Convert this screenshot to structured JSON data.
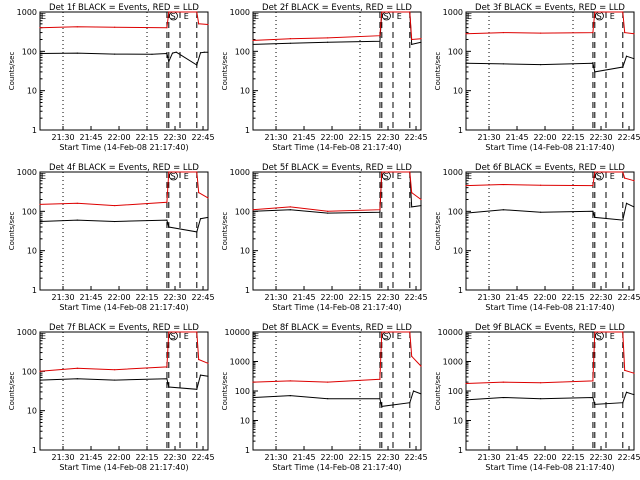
{
  "figure": {
    "x_tick_labels": [
      "21:30",
      "21:45",
      "22:00",
      "22:15",
      "22:30",
      "22:45"
    ],
    "y_tick_labels": [
      "1",
      "10",
      "100",
      "1000"
    ],
    "xlabel": "Start Time (14-Feb-08 21:17:40)",
    "ylabel": "Counts/sec",
    "colors": {
      "events": "#000000",
      "lld": "#dd0000",
      "axes": "#000000"
    }
  },
  "chart_data": [
    {
      "type": "line",
      "title": "Det 1f BLACK = Events, RED = LLD",
      "markers": {
        "E_left": "E",
        "S": "S",
        "E": "E"
      },
      "x_unit": "minutes after 21:17:40",
      "ylim": [
        1,
        1000
      ],
      "y_scale": "log",
      "series": [
        {
          "name": "BLACK = Events",
          "values": [
            {
              "x": 0,
              "y": 88
            },
            {
              "x": 20,
              "y": 90
            },
            {
              "x": 40,
              "y": 85
            },
            {
              "x": 60,
              "y": 84
            },
            {
              "x": 68,
              "y": 88
            },
            {
              "x": 69,
              "y": 55
            },
            {
              "x": 71,
              "y": 90
            },
            {
              "x": 73,
              "y": 95
            },
            {
              "x": 84,
              "y": 45
            },
            {
              "x": 86,
              "y": 92
            },
            {
              "x": 88,
              "y": 95
            },
            {
              "x": 90,
              "y": 95
            }
          ]
        },
        {
          "name": "RED = LLD",
          "values": [
            {
              "x": 0,
              "y": 400
            },
            {
              "x": 20,
              "y": 420
            },
            {
              "x": 40,
              "y": 410
            },
            {
              "x": 68,
              "y": 400
            },
            {
              "x": 69,
              "y": 1000
            },
            {
              "x": 84,
              "y": 1000
            },
            {
              "x": 85,
              "y": 500
            },
            {
              "x": 90,
              "y": 480
            }
          ]
        }
      ]
    },
    {
      "type": "line",
      "title": "Det 2f BLACK = Events, RED = LLD",
      "markers": {
        "E_left": "E",
        "S": "S",
        "E": "E"
      },
      "x_unit": "minutes after 21:17:40",
      "ylim": [
        1,
        1000
      ],
      "y_scale": "log",
      "series": [
        {
          "name": "BLACK = Events",
          "values": [
            {
              "x": 0,
              "y": 150
            },
            {
              "x": 20,
              "y": 160
            },
            {
              "x": 40,
              "y": 170
            },
            {
              "x": 68,
              "y": 180
            },
            {
              "x": 69,
              "y": 1000
            },
            {
              "x": 84,
              "y": 1000
            },
            {
              "x": 85,
              "y": 150
            },
            {
              "x": 90,
              "y": 170
            }
          ]
        },
        {
          "name": "RED = LLD",
          "values": [
            {
              "x": 0,
              "y": 190
            },
            {
              "x": 20,
              "y": 210
            },
            {
              "x": 40,
              "y": 220
            },
            {
              "x": 68,
              "y": 250
            },
            {
              "x": 69,
              "y": 1000
            },
            {
              "x": 84,
              "y": 1000
            },
            {
              "x": 85,
              "y": 200
            },
            {
              "x": 90,
              "y": 210
            }
          ]
        }
      ]
    },
    {
      "type": "line",
      "title": "Det 3f BLACK = Events, RED = LLD",
      "markers": {
        "E_left": "E",
        "S": "S",
        "E": "E"
      },
      "x_unit": "minutes after 21:17:40",
      "ylim": [
        1,
        1000
      ],
      "y_scale": "log",
      "series": [
        {
          "name": "BLACK = Events",
          "values": [
            {
              "x": 0,
              "y": 50
            },
            {
              "x": 20,
              "y": 48
            },
            {
              "x": 40,
              "y": 46
            },
            {
              "x": 68,
              "y": 50
            },
            {
              "x": 69,
              "y": 30
            },
            {
              "x": 84,
              "y": 40
            },
            {
              "x": 86,
              "y": 75
            },
            {
              "x": 90,
              "y": 65
            }
          ]
        },
        {
          "name": "RED = LLD",
          "values": [
            {
              "x": 0,
              "y": 280
            },
            {
              "x": 20,
              "y": 300
            },
            {
              "x": 40,
              "y": 290
            },
            {
              "x": 68,
              "y": 300
            },
            {
              "x": 69,
              "y": 1000
            },
            {
              "x": 84,
              "y": 1000
            },
            {
              "x": 85,
              "y": 300
            },
            {
              "x": 90,
              "y": 280
            }
          ]
        }
      ]
    },
    {
      "type": "line",
      "title": "Det 4f BLACK = Events, RED = LLD",
      "markers": {
        "E_left": "E",
        "S": "S",
        "E": "E"
      },
      "x_unit": "minutes after 21:17:40",
      "ylim": [
        1,
        1000
      ],
      "y_scale": "log",
      "series": [
        {
          "name": "BLACK = Events",
          "values": [
            {
              "x": 0,
              "y": 55
            },
            {
              "x": 20,
              "y": 60
            },
            {
              "x": 40,
              "y": 55
            },
            {
              "x": 68,
              "y": 60
            },
            {
              "x": 69,
              "y": 40
            },
            {
              "x": 84,
              "y": 30
            },
            {
              "x": 86,
              "y": 65
            },
            {
              "x": 90,
              "y": 70
            }
          ]
        },
        {
          "name": "RED = LLD",
          "values": [
            {
              "x": 0,
              "y": 150
            },
            {
              "x": 20,
              "y": 160
            },
            {
              "x": 40,
              "y": 140
            },
            {
              "x": 68,
              "y": 170
            },
            {
              "x": 69,
              "y": 1000
            },
            {
              "x": 84,
              "y": 1000
            },
            {
              "x": 85,
              "y": 300
            },
            {
              "x": 90,
              "y": 220
            }
          ]
        }
      ]
    },
    {
      "type": "line",
      "title": "Det 5f BLACK = Events, RED = LLD",
      "markers": {
        "E_left": "E",
        "S": "S",
        "E": "E"
      },
      "x_unit": "minutes after 21:17:40",
      "ylim": [
        1,
        1000
      ],
      "y_scale": "log",
      "series": [
        {
          "name": "BLACK = Events",
          "values": [
            {
              "x": 0,
              "y": 100
            },
            {
              "x": 20,
              "y": 110
            },
            {
              "x": 40,
              "y": 90
            },
            {
              "x": 68,
              "y": 95
            },
            {
              "x": 69,
              "y": 1000
            },
            {
              "x": 84,
              "y": 1000
            },
            {
              "x": 85,
              "y": 130
            },
            {
              "x": 90,
              "y": 140
            }
          ]
        },
        {
          "name": "RED = LLD",
          "values": [
            {
              "x": 0,
              "y": 110
            },
            {
              "x": 20,
              "y": 130
            },
            {
              "x": 40,
              "y": 100
            },
            {
              "x": 68,
              "y": 110
            },
            {
              "x": 69,
              "y": 1000
            },
            {
              "x": 84,
              "y": 1000
            },
            {
              "x": 85,
              "y": 300
            },
            {
              "x": 90,
              "y": 200
            }
          ]
        }
      ]
    },
    {
      "type": "line",
      "title": "Det 6f BLACK = Events, RED = LLD",
      "markers": {
        "E_left": "E",
        "S": "S",
        "E": "E"
      },
      "x_unit": "minutes after 21:17:40",
      "ylim": [
        1,
        1000
      ],
      "y_scale": "log",
      "series": [
        {
          "name": "BLACK = Events",
          "values": [
            {
              "x": 0,
              "y": 90
            },
            {
              "x": 20,
              "y": 110
            },
            {
              "x": 40,
              "y": 95
            },
            {
              "x": 68,
              "y": 100
            },
            {
              "x": 69,
              "y": 70
            },
            {
              "x": 84,
              "y": 60
            },
            {
              "x": 86,
              "y": 160
            },
            {
              "x": 90,
              "y": 130
            }
          ]
        },
        {
          "name": "RED = LLD",
          "values": [
            {
              "x": 0,
              "y": 450
            },
            {
              "x": 20,
              "y": 480
            },
            {
              "x": 40,
              "y": 460
            },
            {
              "x": 68,
              "y": 450
            },
            {
              "x": 69,
              "y": 1000
            },
            {
              "x": 84,
              "y": 1000
            },
            {
              "x": 85,
              "y": 700
            },
            {
              "x": 90,
              "y": 600
            }
          ]
        }
      ]
    },
    {
      "type": "line",
      "title": "Det 7f BLACK = Events, RED = LLD",
      "markers": {
        "E_left": "E",
        "S": "S",
        "E": "E"
      },
      "x_unit": "minutes after 21:17:40",
      "ylim": [
        1,
        1000
      ],
      "y_scale": "log",
      "series": [
        {
          "name": "BLACK = Events",
          "values": [
            {
              "x": 0,
              "y": 60
            },
            {
              "x": 20,
              "y": 65
            },
            {
              "x": 40,
              "y": 60
            },
            {
              "x": 68,
              "y": 65
            },
            {
              "x": 69,
              "y": 40
            },
            {
              "x": 84,
              "y": 35
            },
            {
              "x": 86,
              "y": 80
            },
            {
              "x": 90,
              "y": 75
            }
          ]
        },
        {
          "name": "RED = LLD",
          "values": [
            {
              "x": 0,
              "y": 100
            },
            {
              "x": 20,
              "y": 120
            },
            {
              "x": 40,
              "y": 110
            },
            {
              "x": 68,
              "y": 130
            },
            {
              "x": 69,
              "y": 1000
            },
            {
              "x": 84,
              "y": 1000
            },
            {
              "x": 85,
              "y": 200
            },
            {
              "x": 90,
              "y": 160
            }
          ]
        }
      ]
    },
    {
      "type": "line",
      "title": "Det 8f BLACK = Events, RED = LLD",
      "markers": {
        "E_left": "E",
        "S": "S",
        "E": "E"
      },
      "x_unit": "minutes after 21:17:40",
      "ylim": [
        1,
        10000
      ],
      "y_scale": "log",
      "series": [
        {
          "name": "BLACK = Events",
          "values": [
            {
              "x": 0,
              "y": 60
            },
            {
              "x": 20,
              "y": 70
            },
            {
              "x": 40,
              "y": 55
            },
            {
              "x": 68,
              "y": 55
            },
            {
              "x": 69,
              "y": 30
            },
            {
              "x": 84,
              "y": 40
            },
            {
              "x": 86,
              "y": 100
            },
            {
              "x": 90,
              "y": 80
            }
          ]
        },
        {
          "name": "RED = LLD",
          "values": [
            {
              "x": 0,
              "y": 200
            },
            {
              "x": 20,
              "y": 220
            },
            {
              "x": 40,
              "y": 200
            },
            {
              "x": 68,
              "y": 250
            },
            {
              "x": 69,
              "y": 10000
            },
            {
              "x": 84,
              "y": 10000
            },
            {
              "x": 85,
              "y": 1500
            },
            {
              "x": 90,
              "y": 700
            }
          ]
        }
      ]
    },
    {
      "type": "line",
      "title": "Det 9f BLACK = Events, RED = LLD",
      "markers": {
        "E_left": "E",
        "S": "S",
        "E": "E"
      },
      "x_unit": "minutes after 21:17:40",
      "ylim": [
        1,
        10000
      ],
      "y_scale": "log",
      "series": [
        {
          "name": "BLACK = Events",
          "values": [
            {
              "x": 0,
              "y": 50
            },
            {
              "x": 20,
              "y": 60
            },
            {
              "x": 40,
              "y": 55
            },
            {
              "x": 68,
              "y": 60
            },
            {
              "x": 69,
              "y": 35
            },
            {
              "x": 84,
              "y": 40
            },
            {
              "x": 86,
              "y": 90
            },
            {
              "x": 90,
              "y": 75
            }
          ]
        },
        {
          "name": "RED = LLD",
          "values": [
            {
              "x": 0,
              "y": 180
            },
            {
              "x": 20,
              "y": 200
            },
            {
              "x": 40,
              "y": 190
            },
            {
              "x": 68,
              "y": 220
            },
            {
              "x": 69,
              "y": 10000
            },
            {
              "x": 84,
              "y": 10000
            },
            {
              "x": 85,
              "y": 500
            },
            {
              "x": 90,
              "y": 400
            }
          ]
        }
      ]
    }
  ]
}
